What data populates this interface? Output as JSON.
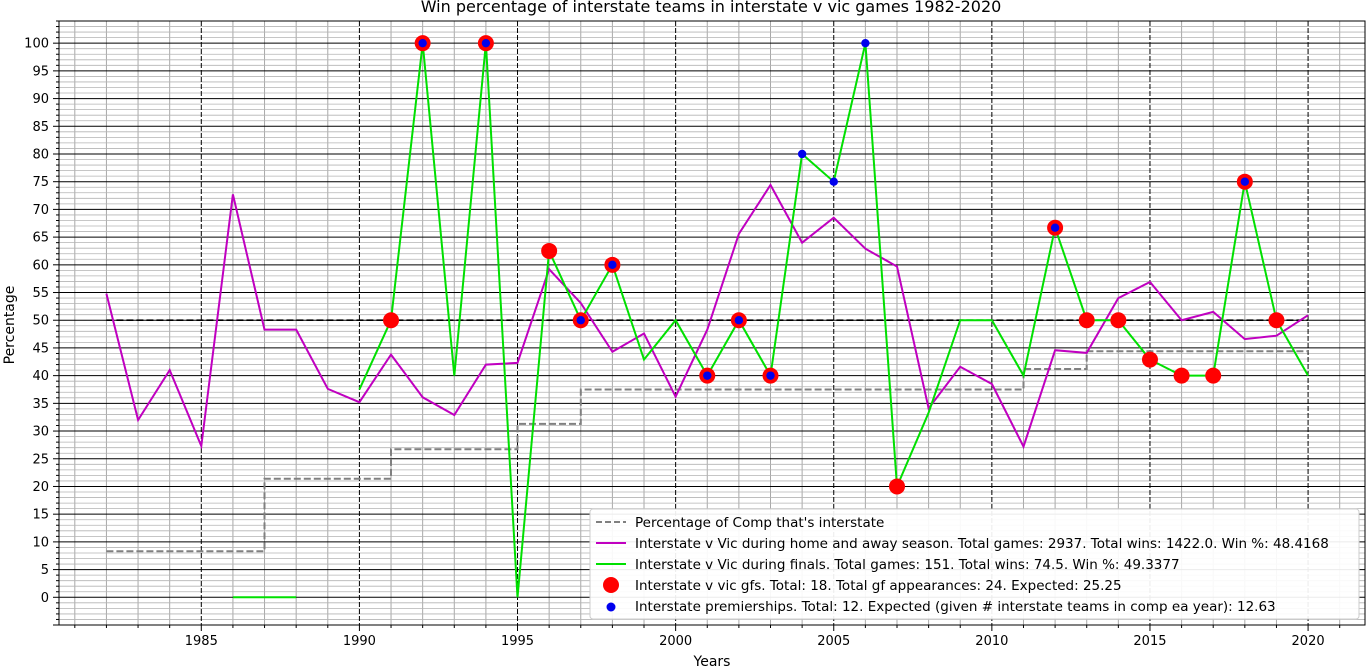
{
  "chart_data": {
    "type": "line",
    "title": "Win percentage of interstate teams in interstate v vic games 1982-2020",
    "xlabel": "Years",
    "ylabel": "Percentage",
    "xlim": [
      1980.5,
      2021.8
    ],
    "ylim": [
      -5,
      104
    ],
    "x_ticks": [
      1985,
      1990,
      1995,
      2000,
      2005,
      2010,
      2015,
      2020
    ],
    "y_ticks": [
      0,
      5,
      10,
      15,
      20,
      25,
      30,
      35,
      40,
      45,
      50,
      55,
      60,
      65,
      70,
      75,
      80,
      85,
      90,
      95,
      100
    ],
    "grid": "on (major and minor)",
    "legend_position": "lower-right",
    "reference_line": {
      "y": 50,
      "x_range": [
        1982,
        2020
      ],
      "style": "dashed",
      "color": "#000000"
    },
    "series": [
      {
        "name": "Percentage of Comp that's interstate",
        "kind": "step-dashed",
        "color": "#808080",
        "points": [
          [
            1982,
            8.3
          ],
          [
            1987,
            8.3
          ],
          [
            1987,
            21.4
          ],
          [
            1991,
            21.4
          ],
          [
            1991,
            26.7
          ],
          [
            1995,
            26.7
          ],
          [
            1995,
            31.3
          ],
          [
            1997,
            31.3
          ],
          [
            1997,
            37.5
          ],
          [
            2011,
            37.5
          ],
          [
            2011,
            41.2
          ],
          [
            2013,
            41.2
          ],
          [
            2013,
            44.4
          ],
          [
            2020,
            44.4
          ]
        ]
      },
      {
        "name": "Interstate v Vic during home and away season. Total games: 2937. Total wins: 1422.0. Win  %: 48.4168",
        "kind": "line",
        "color": "#c000c0",
        "points": [
          [
            1982,
            54.8
          ],
          [
            1983,
            32
          ],
          [
            1984,
            41
          ],
          [
            1985,
            27.3
          ],
          [
            1986,
            72.7
          ],
          [
            1987,
            48.3
          ],
          [
            1988,
            48.3
          ],
          [
            1989,
            37.6
          ],
          [
            1990,
            35.2
          ],
          [
            1991,
            43.8
          ],
          [
            1992,
            36.1
          ],
          [
            1993,
            32.9
          ],
          [
            1994,
            42
          ],
          [
            1995,
            42.3
          ],
          [
            1996,
            59.2
          ],
          [
            1997,
            53.1
          ],
          [
            1998,
            44.3
          ],
          [
            1999,
            47.6
          ],
          [
            2000,
            36.2
          ],
          [
            2001,
            48.3
          ],
          [
            2002,
            65.6
          ],
          [
            2003,
            74.4
          ],
          [
            2004,
            64
          ],
          [
            2005,
            68.5
          ],
          [
            2006,
            62.9
          ],
          [
            2007,
            59.7
          ],
          [
            2008,
            34.1
          ],
          [
            2009,
            41.6
          ],
          [
            2010,
            38.5
          ],
          [
            2011,
            27.2
          ],
          [
            2012,
            44.6
          ],
          [
            2013,
            44.1
          ],
          [
            2014,
            54
          ],
          [
            2015,
            56.9
          ],
          [
            2016,
            50
          ],
          [
            2017,
            51.5
          ],
          [
            2018,
            46.6
          ],
          [
            2019,
            47.2
          ],
          [
            2020,
            50.9
          ]
        ]
      },
      {
        "name": "Interstate v Vic during finals. Total games: 151. Total wins: 74.5. Win %: 49.3377",
        "kind": "line",
        "color": "#00e000",
        "segments": [
          [
            [
              1986,
              0
            ],
            [
              1988,
              0
            ]
          ],
          [
            [
              1990,
              37.5
            ],
            [
              1991,
              50
            ],
            [
              1992,
              100
            ],
            [
              1993,
              40
            ],
            [
              1994,
              100
            ],
            [
              1995,
              0
            ],
            [
              1996,
              62.5
            ],
            [
              1997,
              50
            ],
            [
              1998,
              60
            ],
            [
              1999,
              42.9
            ],
            [
              2000,
              50
            ],
            [
              2001,
              40
            ],
            [
              2002,
              50
            ],
            [
              2003,
              40
            ],
            [
              2004,
              80
            ],
            [
              2005,
              75
            ],
            [
              2006,
              100
            ],
            [
              2007,
              20
            ],
            [
              2008,
              33.3
            ],
            [
              2009,
              50
            ],
            [
              2010,
              50
            ],
            [
              2011,
              40
            ],
            [
              2012,
              66.7
            ],
            [
              2013,
              50
            ],
            [
              2014,
              50
            ],
            [
              2015,
              42.9
            ],
            [
              2016,
              40
            ],
            [
              2017,
              40
            ],
            [
              2018,
              75
            ],
            [
              2019,
              50
            ],
            [
              2020,
              40
            ]
          ]
        ]
      },
      {
        "name": "Interstate v vic gfs. Total: 18. Total gf appearances: 24. Expected: 25.25",
        "kind": "scatter",
        "color": "#ff0000",
        "points": [
          [
            1991,
            50
          ],
          [
            1992,
            100
          ],
          [
            1994,
            100
          ],
          [
            1996,
            62.5
          ],
          [
            1997,
            50
          ],
          [
            1998,
            60
          ],
          [
            2001,
            40
          ],
          [
            2002,
            50
          ],
          [
            2003,
            40
          ],
          [
            2007,
            20
          ],
          [
            2012,
            66.7
          ],
          [
            2013,
            50
          ],
          [
            2014,
            50
          ],
          [
            2015,
            42.9
          ],
          [
            2016,
            40
          ],
          [
            2017,
            40
          ],
          [
            2018,
            75
          ],
          [
            2019,
            50
          ]
        ]
      },
      {
        "name": "Interstate premierships. Total: 12. Expected (given # interstate teams in comp ea year): 12.63",
        "kind": "scatter",
        "color": "#0000ee",
        "points": [
          [
            1992,
            100
          ],
          [
            1994,
            100
          ],
          [
            1997,
            50
          ],
          [
            1998,
            60
          ],
          [
            2001,
            40
          ],
          [
            2002,
            50
          ],
          [
            2003,
            40
          ],
          [
            2004,
            80
          ],
          [
            2005,
            75
          ],
          [
            2006,
            100
          ],
          [
            2012,
            66.7
          ],
          [
            2018,
            75
          ]
        ]
      }
    ]
  }
}
